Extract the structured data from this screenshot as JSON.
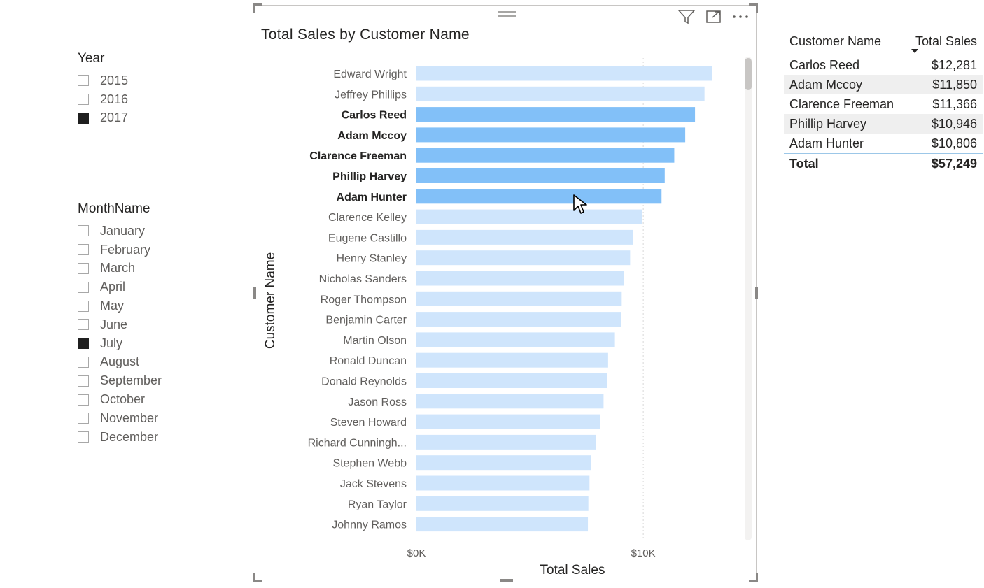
{
  "year_slicer": {
    "title": "Year",
    "items": [
      {
        "label": "2015",
        "checked": false
      },
      {
        "label": "2016",
        "checked": false
      },
      {
        "label": "2017",
        "checked": true
      }
    ]
  },
  "month_slicer": {
    "title": "MonthName",
    "items": [
      {
        "label": "January",
        "checked": false
      },
      {
        "label": "February",
        "checked": false
      },
      {
        "label": "March",
        "checked": false
      },
      {
        "label": "April",
        "checked": false
      },
      {
        "label": "May",
        "checked": false
      },
      {
        "label": "June",
        "checked": false
      },
      {
        "label": "July",
        "checked": true
      },
      {
        "label": "August",
        "checked": false
      },
      {
        "label": "September",
        "checked": false
      },
      {
        "label": "October",
        "checked": false
      },
      {
        "label": "November",
        "checked": false
      },
      {
        "label": "December",
        "checked": false
      }
    ]
  },
  "chart_visual": {
    "header_icons": [
      "filter-icon",
      "focus-mode-icon",
      "more-options-icon"
    ]
  },
  "chart_data": {
    "type": "bar",
    "orientation": "horizontal",
    "title": "Total Sales by Customer Name",
    "xlabel": "Total Sales",
    "ylabel": "Customer Name",
    "xticks": [
      "$0K",
      "$10K"
    ],
    "xlim": [
      0,
      14500
    ],
    "grid": true,
    "colors": {
      "highlight": "#82c0f8",
      "normal": "#cfe5fc"
    },
    "categories": [
      "Edward Wright",
      "Jeffrey Phillips",
      "Carlos Reed",
      "Adam Mccoy",
      "Clarence Freeman",
      "Phillip Harvey",
      "Adam Hunter",
      "Clarence Kelley",
      "Eugene Castillo",
      "Henry Stanley",
      "Nicholas Sanders",
      "Roger Thompson",
      "Benjamin Carter",
      "Martin Olson",
      "Ronald Duncan",
      "Donald Reynolds",
      "Jason Ross",
      "Steven Howard",
      "Richard Cunningh...",
      "Stephen Webb",
      "Jack Stevens",
      "Ryan Taylor",
      "Johnny Ramos"
    ],
    "values": [
      13050,
      12700,
      12281,
      11850,
      11366,
      10946,
      10806,
      9950,
      9550,
      9420,
      9150,
      9050,
      9030,
      8750,
      8450,
      8400,
      8250,
      8100,
      7900,
      7700,
      7630,
      7580,
      7560
    ],
    "highlighted": [
      false,
      false,
      true,
      true,
      true,
      true,
      true,
      false,
      false,
      false,
      false,
      false,
      false,
      false,
      false,
      false,
      false,
      false,
      false,
      false,
      false,
      false,
      false
    ]
  },
  "table": {
    "headers": [
      "Customer Name",
      "Total Sales"
    ],
    "rows": [
      {
        "name": "Carlos Reed",
        "value": "$12,281"
      },
      {
        "name": "Adam Mccoy",
        "value": "$11,850"
      },
      {
        "name": "Clarence Freeman",
        "value": "$11,366"
      },
      {
        "name": "Phillip Harvey",
        "value": "$10,946"
      },
      {
        "name": "Adam Hunter",
        "value": "$10,806"
      }
    ],
    "total": {
      "label": "Total",
      "value": "$57,249"
    }
  }
}
